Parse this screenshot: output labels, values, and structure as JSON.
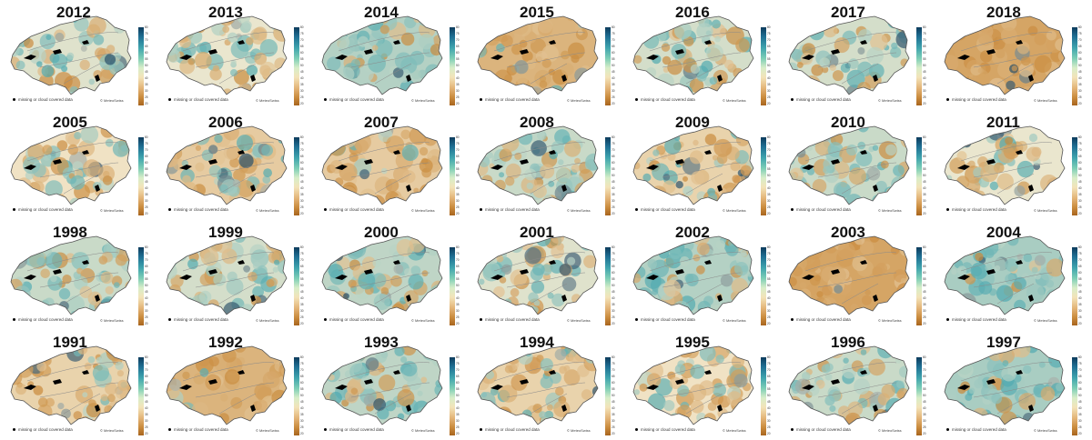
{
  "figure": {
    "years_rows": [
      [
        "2012",
        "2013",
        "2014",
        "2015",
        "2016",
        "2017",
        "2018"
      ],
      [
        "2005",
        "2006",
        "2007",
        "2008",
        "2009",
        "2010",
        "2011"
      ],
      [
        "1998",
        "1999",
        "2000",
        "2001",
        "2002",
        "2003",
        "2004"
      ],
      [
        "1991",
        "1992",
        "1993",
        "1994",
        "1995",
        "1996",
        "1997"
      ]
    ],
    "legend_note": "missing or cloud covered data",
    "credit": "© MeteoSwiss",
    "colorbar_ticks": [
      "80",
      "75",
      "70",
      "65",
      "60",
      "55",
      "50",
      "45",
      "40",
      "35",
      "30",
      "25",
      "20"
    ],
    "colors": {
      "dry": "#c98a3c",
      "neutral": "#f3ead0",
      "wet": "#3ea3ad",
      "very_wet": "#0d3b5c",
      "border": "#555555",
      "missing": "#000000"
    },
    "panel_dryness": [
      [
        0.45,
        0.5,
        0.25,
        0.85,
        0.4,
        0.4,
        0.95
      ],
      [
        0.55,
        0.7,
        0.7,
        0.35,
        0.65,
        0.35,
        0.5
      ],
      [
        0.35,
        0.4,
        0.3,
        0.45,
        0.25,
        0.95,
        0.2
      ],
      [
        0.65,
        0.85,
        0.3,
        0.65,
        0.55,
        0.35,
        0.2
      ]
    ]
  }
}
